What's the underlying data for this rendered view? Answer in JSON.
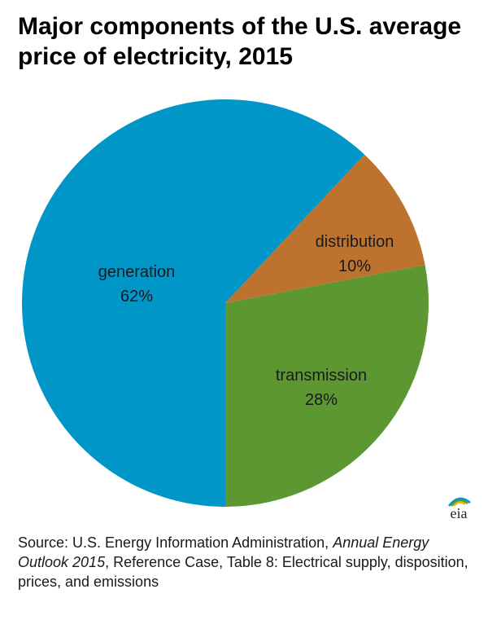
{
  "chart_data": {
    "type": "pie",
    "title": "Major components of the U.S. average price of electricity, 2015",
    "slices": [
      {
        "name": "generation",
        "value": 62,
        "label": "62%",
        "color": "#0096c8"
      },
      {
        "name": "distribution",
        "value": 10,
        "label": "10%",
        "color": "#bd732e"
      },
      {
        "name": "transmission",
        "value": 28,
        "label": "28%",
        "color": "#5d9732"
      }
    ]
  },
  "logo": {
    "text": "eia",
    "icon": "eia-logo"
  },
  "source": {
    "prefix": "Source: U.S. Energy Information Administration, ",
    "italic": "Annual Energy Outlook 2015",
    "suffix": ", Reference Case, Table 8: Electrical supply, disposition, prices, and emissions"
  }
}
